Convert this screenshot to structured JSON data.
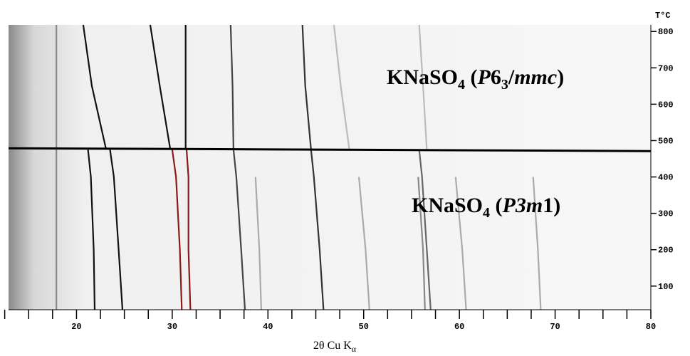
{
  "chart_data": {
    "type": "line",
    "y_axis_label": "T°C",
    "x_axis_label_parts": [
      "2θ Cu K",
      "α"
    ],
    "xlim": [
      12.9,
      80
    ],
    "xticks": [
      20,
      30,
      40,
      50,
      60,
      70,
      80
    ],
    "xminorticks": [
      12.5,
      15,
      17.5,
      22.5,
      25,
      27.5,
      32.5,
      35,
      37.5,
      42.5,
      45,
      47.5,
      52.5,
      55,
      57.5,
      62.5,
      65,
      67.5,
      72.5,
      75,
      77.5
    ],
    "ylim": [
      35,
      818
    ],
    "yticks": [
      100,
      200,
      300,
      400,
      500,
      600,
      700,
      800
    ],
    "y": [
      35,
      200,
      400,
      475,
      650,
      818
    ],
    "transition": 475,
    "annotations": [
      {
        "parts": [
          "KNaSO",
          "4",
          " (",
          "P",
          "6",
          "3",
          "/",
          "mmc",
          ")"
        ]
      },
      {
        "parts": [
          "KNaSO",
          "4",
          " (",
          "P",
          "3",
          "m",
          "1)"
        ]
      }
    ],
    "series": [
      {
        "color": "#888888",
        "values": [
          17.9,
          17.9,
          17.9,
          17.9,
          17.9,
          17.9
        ]
      },
      {
        "color": "#111111",
        "values": [
          null,
          null,
          null,
          23.1,
          21.6,
          20.7
        ]
      },
      {
        "color": "#111111",
        "values": [
          21.9,
          21.8,
          21.5,
          21.2,
          null,
          null
        ]
      },
      {
        "color": "#111111",
        "values": [
          24.8,
          24.4,
          23.9,
          23.5,
          null,
          null
        ]
      },
      {
        "color": "#111111",
        "values": [
          null,
          null,
          null,
          29.8,
          28.7,
          27.7
        ]
      },
      {
        "color": "#8b1a1a",
        "values": [
          31.0,
          30.8,
          30.4,
          30.0,
          null,
          null
        ]
      },
      {
        "color": "#8b1a1a",
        "values": [
          31.9,
          31.7,
          31.7,
          31.5,
          null,
          null
        ]
      },
      {
        "color": "#111111",
        "values": [
          null,
          null,
          null,
          31.4,
          31.4,
          31.4
        ]
      },
      {
        "color": "#444444",
        "values": [
          37.6,
          37.2,
          36.7,
          36.4,
          36.3,
          36.1
        ]
      },
      {
        "color": "#333333",
        "values": [
          45.8,
          45.4,
          44.8,
          44.5,
          43.9,
          43.6
        ]
      },
      {
        "color": "#aaaaaa",
        "values": [
          39.3,
          39.1,
          38.7,
          null,
          null,
          null
        ]
      },
      {
        "color": "#aaaaaa",
        "values": [
          50.6,
          50.2,
          49.5,
          null,
          null,
          null
        ]
      },
      {
        "color": "#666666",
        "values": [
          57.0,
          56.6,
          56.1,
          55.8,
          null,
          null
        ]
      },
      {
        "color": "#888888",
        "values": [
          56.4,
          56.2,
          55.7,
          null,
          null,
          null
        ]
      },
      {
        "color": "#aaaaaa",
        "values": [
          60.7,
          60.3,
          59.6,
          null,
          null,
          null
        ]
      },
      {
        "color": "#aaaaaa",
        "values": [
          68.5,
          68.2,
          67.7,
          null,
          null,
          null
        ]
      },
      {
        "color": "#bbbbbb",
        "values": [
          null,
          null,
          null,
          56.6,
          56.2,
          55.8
        ]
      },
      {
        "color": "#bbbbbb",
        "values": [
          null,
          null,
          null,
          48.5,
          47.6,
          46.9
        ]
      }
    ]
  }
}
